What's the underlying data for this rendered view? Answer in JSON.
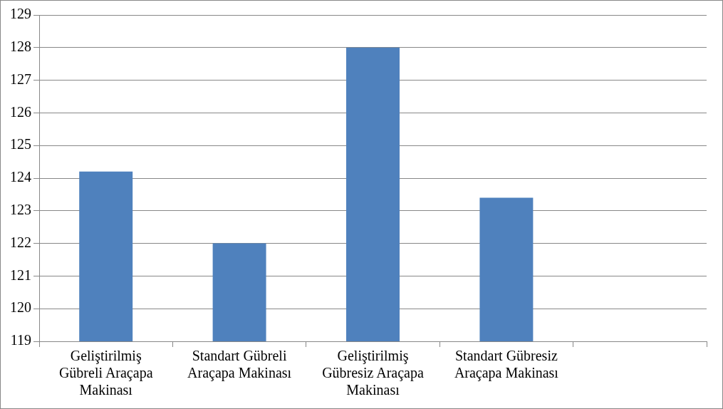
{
  "chart_data": {
    "type": "bar",
    "categories": [
      "Geliştirilmiş Gübreli Araçapa Makinası",
      "Standart Gübreli Araçapa Makinası",
      "Geliştirilmiş Gübresiz Araçapa Makinası",
      "Standart Gübresiz Araçapa Makinası",
      null
    ],
    "values": [
      124.2,
      122,
      128,
      123.4,
      null
    ],
    "color": "#4f81bd",
    "ylim": [
      119,
      129
    ],
    "yticks": [
      119,
      120,
      121,
      122,
      123,
      124,
      125,
      126,
      127,
      128,
      129
    ],
    "grid": "y",
    "legend": false
  }
}
